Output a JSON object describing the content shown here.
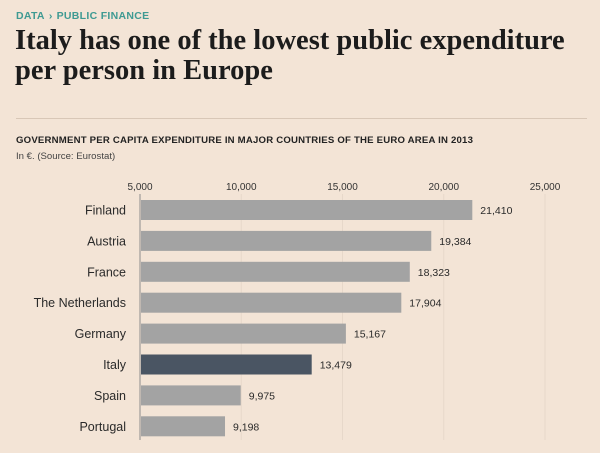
{
  "breadcrumb": {
    "section": "DATA",
    "separator": "›",
    "category": "PUBLIC FINANCE"
  },
  "headline": "Italy has one of the lowest public expenditure per person in Europe",
  "colors": {
    "background": "#f3e4d6",
    "bar": "#a3a3a3",
    "highlight_bar": "#4a5563",
    "accent": "#3e9a92",
    "grid": "#e7d8ca"
  },
  "chart_data": {
    "type": "bar",
    "orientation": "horizontal",
    "title": "GOVERNMENT PER CAPITA EXPENDITURE IN MAJOR COUNTRIES OF THE EURO AREA IN 2013",
    "subtitle": "In €. (Source: Eurostat)",
    "categories": [
      "Finland",
      "Austria",
      "France",
      "The Netherlands",
      "Germany",
      "Italy",
      "Spain",
      "Portugal"
    ],
    "values": [
      21410,
      19384,
      18323,
      17904,
      15167,
      13479,
      9975,
      9198
    ],
    "value_labels": [
      "21,410",
      "19,384",
      "18,323",
      "17,904",
      "15,167",
      "13,479",
      "9,975",
      "9,198"
    ],
    "highlight": "Italy",
    "xlim": [
      5000,
      25000
    ],
    "xticks": [
      5000,
      10000,
      15000,
      20000,
      25000
    ],
    "xtick_labels": [
      "5,000",
      "10,000",
      "15,000",
      "20,000",
      "25,000"
    ],
    "axis_position": "top",
    "grid": true
  }
}
